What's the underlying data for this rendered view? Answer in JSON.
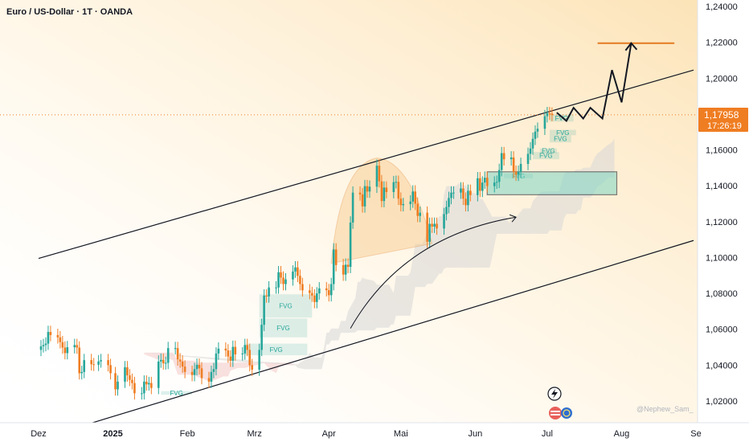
{
  "chart_data": {
    "type": "candlestick",
    "title": "Euro / US-Dollar · 1T · OANDA",
    "watermark": "@Nephew_Sam_",
    "current_price": {
      "value": "1,17958",
      "countdown": "17:26:19"
    },
    "ylim": [
      1.005,
      1.245
    ],
    "y_ticks": [
      "1,24000",
      "1,22000",
      "1,20000",
      "1,18000",
      "1,16000",
      "1,14000",
      "1,12000",
      "1,10000",
      "1,08000",
      "1,06000",
      "1,04000",
      "1,02000"
    ],
    "x_ticks": [
      {
        "label": "Dez",
        "day": 0
      },
      {
        "label": "2025",
        "day": 31,
        "bold": true
      },
      {
        "label": "Feb",
        "day": 62
      },
      {
        "label": "Mrz",
        "day": 90
      },
      {
        "label": "Apr",
        "day": 121
      },
      {
        "label": "Mai",
        "day": 151
      },
      {
        "label": "Jun",
        "day": 182
      },
      {
        "label": "Jul",
        "day": 212
      },
      {
        "label": "Aug",
        "day": 243
      },
      {
        "label": "Se",
        "day": 274
      }
    ],
    "x_dates": [
      "2024-12-01",
      "2025-09-01"
    ],
    "colors": {
      "up": "#26a69a",
      "down": "#ef7d22",
      "channel": "#131722",
      "target": "#e37b21",
      "fvg": "#26a69a",
      "bg_warm": "#fce2b4",
      "kumo_red": "#f3c9c9",
      "kumo_grey": "#d7d7d7",
      "price_tag": "#ef7d22"
    },
    "channel_upper": [
      [
        "2024-12-01",
        1.0995
      ],
      [
        "2025-08-31",
        1.2045
      ]
    ],
    "channel_lower": [
      [
        "2024-12-20",
        1.0065
      ],
      [
        "2025-08-31",
        1.1095
      ]
    ],
    "target_line": {
      "from": "2025-07-22",
      "to": "2025-08-23",
      "value": 1.2195
    },
    "projection_path": [
      [
        "2025-07-05",
        1.1808
      ],
      [
        "2025-07-09",
        1.1762
      ],
      [
        "2025-07-12",
        1.1835
      ],
      [
        "2025-07-16",
        1.1775
      ],
      [
        "2025-07-19",
        1.1835
      ],
      [
        "2025-07-24",
        1.1775
      ],
      [
        "2025-07-28",
        1.2045
      ],
      [
        "2025-08-01",
        1.1865
      ],
      [
        "2025-08-05",
        1.2195
      ]
    ],
    "fvg_zones": [
      {
        "from": "2025-03-03",
        "to": "2025-03-25",
        "low": 1.0665,
        "high": 1.0795,
        "label": "FVG"
      },
      {
        "from": "2025-03-03",
        "to": "2025-03-23",
        "low": 1.0555,
        "high": 1.066,
        "label": "FVG"
      },
      {
        "from": "2025-02-25",
        "to": "2025-03-23",
        "low": 1.0455,
        "high": 1.052,
        "label": "FVG"
      },
      {
        "from": "2025-01-21",
        "to": "2025-02-03",
        "low": 1.0235,
        "high": 1.0255,
        "label": "FVG"
      },
      {
        "from": "2025-06-13",
        "to": "2025-06-25",
        "low": 1.1442,
        "high": 1.1468,
        "label": "FVG"
      },
      {
        "from": "2025-06-25",
        "to": "2025-07-06",
        "low": 1.1548,
        "high": 1.1588,
        "label": "FVG"
      },
      {
        "from": "2025-06-28",
        "to": "2025-07-05",
        "low": 1.1582,
        "high": 1.1608,
        "label": "FVG"
      },
      {
        "from": "2025-07-02",
        "to": "2025-07-11",
        "low": 1.1642,
        "high": 1.1682,
        "label": "FVG"
      },
      {
        "from": "2025-07-02",
        "to": "2025-07-13",
        "low": 1.1682,
        "high": 1.1712,
        "label": "FVG"
      },
      {
        "from": "2025-07-02",
        "to": "2025-07-12",
        "low": 1.1758,
        "high": 1.1798,
        "label": "FVG"
      }
    ],
    "demand_box": {
      "from": "2025-06-06",
      "to": "2025-07-30",
      "low": 1.135,
      "high": 1.1478
    },
    "closes": [
      [
        "2024-12-02",
        1.0505
      ],
      [
        "2024-12-03",
        1.0512
      ],
      [
        "2024-12-04",
        1.052
      ],
      [
        "2024-12-05",
        1.0585
      ],
      [
        "2024-12-06",
        1.0568
      ],
      [
        "2024-12-09",
        1.0555
      ],
      [
        "2024-12-10",
        1.0528
      ],
      [
        "2024-12-11",
        1.0498
      ],
      [
        "2024-12-12",
        1.0467
      ],
      [
        "2024-12-13",
        1.05
      ],
      [
        "2024-12-16",
        1.0512
      ],
      [
        "2024-12-17",
        1.0498
      ],
      [
        "2024-12-18",
        1.0355
      ],
      [
        "2024-12-19",
        1.0362
      ],
      [
        "2024-12-20",
        1.0428
      ],
      [
        "2024-12-23",
        1.0405
      ],
      [
        "2024-12-24",
        1.0402
      ],
      [
        "2024-12-26",
        1.0421
      ],
      [
        "2024-12-27",
        1.0428
      ],
      [
        "2024-12-30",
        1.04
      ],
      [
        "2024-12-31",
        1.0355
      ],
      [
        "2025-01-02",
        1.0265
      ],
      [
        "2025-01-03",
        1.0308
      ],
      [
        "2025-01-06",
        1.0388
      ],
      [
        "2025-01-07",
        1.0343
      ],
      [
        "2025-01-08",
        1.0318
      ],
      [
        "2025-01-09",
        1.03
      ],
      [
        "2025-01-10",
        1.0243
      ],
      [
        "2025-01-13",
        1.0243
      ],
      [
        "2025-01-14",
        1.0308
      ],
      [
        "2025-01-15",
        1.0293
      ],
      [
        "2025-01-16",
        1.03
      ],
      [
        "2025-01-17",
        1.0273
      ],
      [
        "2025-01-20",
        1.042
      ],
      [
        "2025-01-21",
        1.043
      ],
      [
        "2025-01-22",
        1.041
      ],
      [
        "2025-01-23",
        1.0413
      ],
      [
        "2025-01-24",
        1.0495
      ],
      [
        "2025-01-27",
        1.0495
      ],
      [
        "2025-01-28",
        1.0432
      ],
      [
        "2025-01-29",
        1.042
      ],
      [
        "2025-01-30",
        1.0392
      ],
      [
        "2025-01-31",
        1.0362
      ],
      [
        "2025-02-03",
        1.0345
      ],
      [
        "2025-02-04",
        1.0378
      ],
      [
        "2025-02-05",
        1.0402
      ],
      [
        "2025-02-06",
        1.0382
      ],
      [
        "2025-02-07",
        1.0328
      ],
      [
        "2025-02-10",
        1.0308
      ],
      [
        "2025-02-11",
        1.0362
      ],
      [
        "2025-02-12",
        1.0378
      ],
      [
        "2025-02-13",
        1.0465
      ],
      [
        "2025-02-14",
        1.0492
      ],
      [
        "2025-02-17",
        1.0482
      ],
      [
        "2025-02-18",
        1.0448
      ],
      [
        "2025-02-19",
        1.0425
      ],
      [
        "2025-02-20",
        1.0502
      ],
      [
        "2025-02-21",
        1.046
      ],
      [
        "2025-02-24",
        1.0465
      ],
      [
        "2025-02-25",
        1.0512
      ],
      [
        "2025-02-26",
        1.0485
      ],
      [
        "2025-02-27",
        1.04
      ],
      [
        "2025-02-28",
        1.0375
      ],
      [
        "2025-03-03",
        1.0485
      ],
      [
        "2025-03-04",
        1.0625
      ],
      [
        "2025-03-05",
        1.0788
      ],
      [
        "2025-03-06",
        1.0783
      ],
      [
        "2025-03-07",
        1.0833
      ],
      [
        "2025-03-10",
        1.0833
      ],
      [
        "2025-03-11",
        1.0918
      ],
      [
        "2025-03-12",
        1.0888
      ],
      [
        "2025-03-13",
        1.0852
      ],
      [
        "2025-03-14",
        1.0878
      ],
      [
        "2025-03-17",
        1.0922
      ],
      [
        "2025-03-18",
        1.0945
      ],
      [
        "2025-03-19",
        1.0898
      ],
      [
        "2025-03-20",
        1.0852
      ],
      [
        "2025-03-21",
        1.0817
      ],
      [
        "2025-03-24",
        1.0802
      ],
      [
        "2025-03-25",
        1.0788
      ],
      [
        "2025-03-26",
        1.0752
      ],
      [
        "2025-03-27",
        1.08
      ],
      [
        "2025-03-28",
        1.0828
      ],
      [
        "2025-03-31",
        1.0818
      ],
      [
        "2025-04-01",
        1.079
      ],
      [
        "2025-04-02",
        1.0852
      ],
      [
        "2025-04-03",
        1.1045
      ],
      [
        "2025-04-04",
        1.0958
      ],
      [
        "2025-04-07",
        1.0905
      ],
      [
        "2025-04-08",
        1.096
      ],
      [
        "2025-04-09",
        1.0948
      ],
      [
        "2025-04-10",
        1.1195
      ],
      [
        "2025-04-11",
        1.1362
      ],
      [
        "2025-04-14",
        1.1352
      ],
      [
        "2025-04-15",
        1.1285
      ],
      [
        "2025-04-16",
        1.1398
      ],
      [
        "2025-04-17",
        1.1368
      ],
      [
        "2025-04-18",
        1.1395
      ],
      [
        "2025-04-21",
        1.1512
      ],
      [
        "2025-04-22",
        1.1425
      ],
      [
        "2025-04-23",
        1.1315
      ],
      [
        "2025-04-24",
        1.139
      ],
      [
        "2025-04-25",
        1.1365
      ],
      [
        "2025-04-28",
        1.142
      ],
      [
        "2025-04-29",
        1.1422
      ],
      [
        "2025-04-30",
        1.1328
      ],
      [
        "2025-05-01",
        1.1292
      ],
      [
        "2025-05-02",
        1.1298
      ],
      [
        "2025-05-05",
        1.1312
      ],
      [
        "2025-05-06",
        1.1368
      ],
      [
        "2025-05-07",
        1.13
      ],
      [
        "2025-05-08",
        1.1232
      ],
      [
        "2025-05-09",
        1.125
      ],
      [
        "2025-05-12",
        1.1088
      ],
      [
        "2025-05-13",
        1.1188
      ],
      [
        "2025-05-14",
        1.1172
      ],
      [
        "2025-05-15",
        1.1188
      ],
      [
        "2025-05-16",
        1.1162
      ],
      [
        "2025-05-19",
        1.1242
      ],
      [
        "2025-05-20",
        1.1282
      ],
      [
        "2025-05-21",
        1.1332
      ],
      [
        "2025-05-22",
        1.1362
      ],
      [
        "2025-05-23",
        1.1362
      ],
      [
        "2025-05-26",
        1.1385
      ],
      [
        "2025-05-27",
        1.1328
      ],
      [
        "2025-05-28",
        1.1292
      ],
      [
        "2025-05-29",
        1.1372
      ],
      [
        "2025-05-30",
        1.1348
      ],
      [
        "2025-06-02",
        1.1442
      ],
      [
        "2025-06-03",
        1.1372
      ],
      [
        "2025-06-04",
        1.1418
      ],
      [
        "2025-06-05",
        1.1445
      ],
      [
        "2025-06-06",
        1.1398
      ],
      [
        "2025-06-09",
        1.1418
      ],
      [
        "2025-06-10",
        1.1422
      ],
      [
        "2025-06-11",
        1.1488
      ],
      [
        "2025-06-12",
        1.1582
      ],
      [
        "2025-06-13",
        1.1548
      ],
      [
        "2025-06-16",
        1.1558
      ],
      [
        "2025-06-17",
        1.1478
      ],
      [
        "2025-06-18",
        1.1462
      ],
      [
        "2025-06-19",
        1.1478
      ],
      [
        "2025-06-20",
        1.1522
      ],
      [
        "2025-06-23",
        1.1578
      ],
      [
        "2025-06-24",
        1.1608
      ],
      [
        "2025-06-25",
        1.1662
      ],
      [
        "2025-06-26",
        1.1702
      ],
      [
        "2025-06-27",
        1.1718
      ],
      [
        "2025-06-30",
        1.1788
      ],
      [
        "2025-07-01",
        1.1805
      ],
      [
        "2025-07-02",
        1.1802
      ],
      [
        "2025-07-03",
        1.1795
      ]
    ]
  }
}
